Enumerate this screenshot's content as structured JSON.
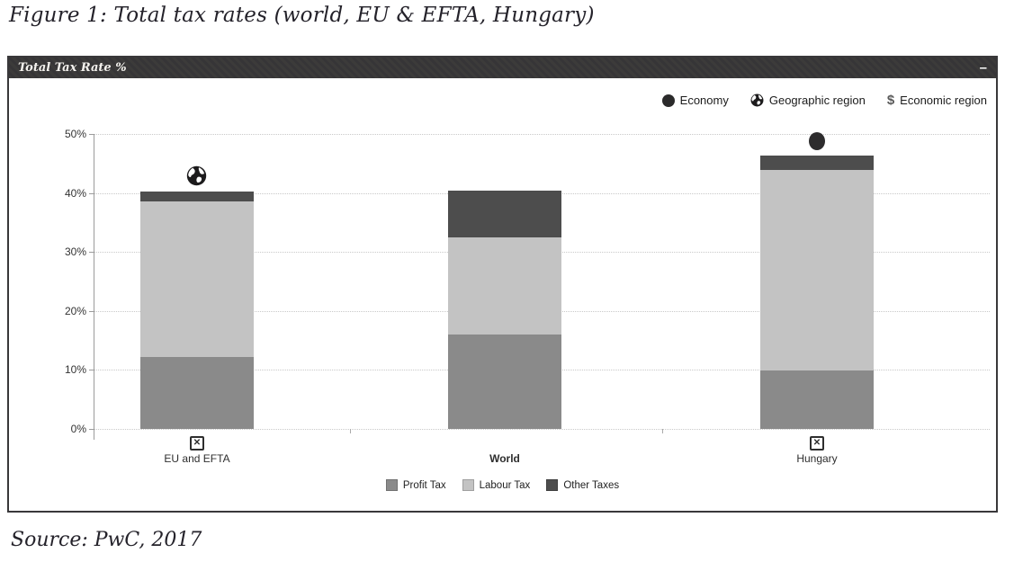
{
  "figure": {
    "title": "Figure 1: Total tax rates (world, EU & EFTA, Hungary)",
    "source": "Source: PwC, 2017"
  },
  "panel": {
    "header": {
      "title": "Total Tax Rate %",
      "minimize_label": "–"
    },
    "top_legend": [
      {
        "label": "Economy",
        "icon": "filled-circle"
      },
      {
        "label": "Geographic region",
        "icon": "globe"
      },
      {
        "label": "Economic region",
        "icon": "dollar",
        "glyph": "$"
      }
    ]
  },
  "chart_data": {
    "type": "bar",
    "stacked": true,
    "title": "Total Tax Rate %",
    "categories": [
      "EU and EFTA",
      "World",
      "Hungary"
    ],
    "bold_categories": [
      "World"
    ],
    "series": [
      {
        "name": "Profit Tax",
        "color": "#8a8a8a",
        "values": [
          12.2,
          16.0,
          9.9
        ]
      },
      {
        "name": "Labour Tax",
        "color": "#c3c3c3",
        "values": [
          26.3,
          16.5,
          34.0
        ]
      },
      {
        "name": "Other Taxes",
        "color": "#4d4d4d",
        "values": [
          1.8,
          7.9,
          2.4
        ]
      }
    ],
    "totals": [
      40.3,
      40.4,
      46.3
    ],
    "ylim": [
      0,
      50
    ],
    "yticks": [
      "0%",
      "10%",
      "20%",
      "30%",
      "40%",
      "50%"
    ],
    "grid": "dotted horizontal",
    "legend_position": "bottom",
    "category_markers": [
      {
        "category": "EU and EFTA",
        "type": "globe",
        "meaning": "Geographic region"
      },
      {
        "category": "World",
        "type": "none",
        "meaning": ""
      },
      {
        "category": "Hungary",
        "type": "circle",
        "meaning": "Economy"
      }
    ],
    "axis_icons": [
      "broken-image",
      "none",
      "broken-image"
    ],
    "broken_icon_glyph": "✕"
  }
}
